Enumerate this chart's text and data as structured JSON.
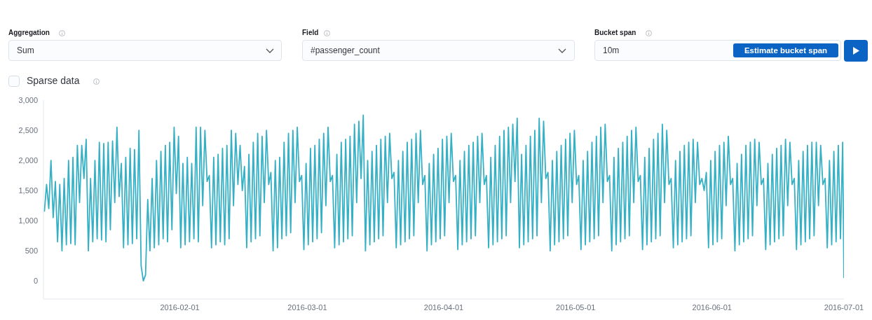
{
  "chart_data": {
    "type": "line",
    "annotations": [
      "Aggregation",
      "Sum",
      "Field",
      "#passenger_count",
      "Bucket span",
      "10m",
      "Estimate bucket span",
      "Sparse data"
    ],
    "xlim": [
      "2016-01-01",
      "2016-07-01"
    ],
    "xticks": [
      "2016-02-01",
      "2016-03-01",
      "2016-04-01",
      "2016-05-01",
      "2016-06-01",
      "2016-07-01"
    ],
    "ylim": [
      -300,
      3000
    ],
    "yticks": [
      0,
      500,
      {
        "value": 1000,
        "label": "1,000"
      },
      {
        "value": 1500,
        "label": "1,500"
      },
      {
        "value": 2000,
        "label": "2,000"
      },
      {
        "value": 2500,
        "label": "2,500"
      },
      {
        "value": 3000,
        "label": "3,000"
      }
    ],
    "x": [
      "2016-01-01T05:00",
      "2016-01-01T17:00",
      "2016-01-02T05:00",
      "2016-01-02T17:00",
      "2016-01-03T05:00",
      "2016-01-03T17:00",
      "2016-01-04T05:00",
      "2016-01-04T17:00",
      "2016-01-05T05:00",
      "2016-01-05T17:00",
      "2016-01-06T05:00",
      "2016-01-06T17:00",
      "2016-01-07T05:00",
      "2016-01-07T17:00",
      "2016-01-08T05:00",
      "2016-01-08T17:00",
      "2016-01-09T05:00",
      "2016-01-09T17:00",
      "2016-01-10T05:00",
      "2016-01-10T17:00",
      "2016-01-11T05:00",
      "2016-01-11T17:00",
      "2016-01-12T05:00",
      "2016-01-12T17:00",
      "2016-01-13T05:00",
      "2016-01-13T17:00",
      "2016-01-14T05:00",
      "2016-01-14T17:00",
      "2016-01-15T05:00",
      "2016-01-15T17:00",
      "2016-01-16T05:00",
      "2016-01-16T17:00",
      "2016-01-17T05:00",
      "2016-01-17T17:00",
      "2016-01-18T05:00",
      "2016-01-18T17:00",
      "2016-01-19T05:00",
      "2016-01-19T17:00",
      "2016-01-20T05:00",
      "2016-01-20T17:00",
      "2016-01-21T05:00",
      "2016-01-21T17:00",
      "2016-01-22T05:00",
      "2016-01-22T17:00",
      "2016-01-23T05:00",
      "2016-01-23T17:00",
      "2016-01-24T05:00",
      "2016-01-24T17:00",
      "2016-01-25T05:00",
      "2016-01-25T17:00",
      "2016-01-26T05:00",
      "2016-01-26T17:00",
      "2016-01-27T05:00",
      "2016-01-27T17:00",
      "2016-01-28T05:00",
      "2016-01-28T17:00",
      "2016-01-29T05:00",
      "2016-01-29T17:00",
      "2016-01-30T05:00",
      "2016-01-30T17:00",
      "2016-01-31T05:00",
      "2016-01-31T17:00",
      "2016-02-01T05:00",
      "2016-02-01T17:00",
      "2016-02-02T05:00",
      "2016-02-02T17:00",
      "2016-02-03T05:00",
      "2016-02-03T17:00",
      "2016-02-04T05:00",
      "2016-02-04T17:00",
      "2016-02-05T05:00",
      "2016-02-05T17:00",
      "2016-02-06T05:00",
      "2016-02-06T17:00",
      "2016-02-07T05:00",
      "2016-02-07T17:00",
      "2016-02-08T05:00",
      "2016-02-08T17:00",
      "2016-02-09T05:00",
      "2016-02-09T17:00",
      "2016-02-10T05:00",
      "2016-02-10T17:00",
      "2016-02-11T05:00",
      "2016-02-11T17:00",
      "2016-02-12T05:00",
      "2016-02-12T17:00",
      "2016-02-13T05:00",
      "2016-02-13T17:00",
      "2016-02-14T05:00",
      "2016-02-14T17:00",
      "2016-02-15T05:00",
      "2016-02-15T17:00",
      "2016-02-16T05:00",
      "2016-02-16T17:00",
      "2016-02-17T05:00",
      "2016-02-17T17:00",
      "2016-02-18T05:00",
      "2016-02-18T17:00",
      "2016-02-19T05:00",
      "2016-02-19T17:00",
      "2016-02-20T05:00",
      "2016-02-20T17:00",
      "2016-02-21T05:00",
      "2016-02-21T17:00",
      "2016-02-22T05:00",
      "2016-02-22T17:00",
      "2016-02-23T05:00",
      "2016-02-23T17:00",
      "2016-02-24T05:00",
      "2016-02-24T17:00",
      "2016-02-25T05:00",
      "2016-02-25T17:00",
      "2016-02-26T05:00",
      "2016-02-26T17:00",
      "2016-02-27T05:00",
      "2016-02-27T17:00",
      "2016-02-28T05:00",
      "2016-02-28T17:00",
      "2016-02-29T05:00",
      "2016-02-29T17:00",
      "2016-03-01T05:00",
      "2016-03-01T17:00",
      "2016-03-02T05:00",
      "2016-03-02T17:00",
      "2016-03-03T05:00",
      "2016-03-03T17:00",
      "2016-03-04T05:00",
      "2016-03-04T17:00",
      "2016-03-05T05:00",
      "2016-03-05T17:00",
      "2016-03-06T05:00",
      "2016-03-06T17:00",
      "2016-03-07T05:00",
      "2016-03-07T17:00",
      "2016-03-08T05:00",
      "2016-03-08T17:00",
      "2016-03-09T05:00",
      "2016-03-09T17:00",
      "2016-03-10T05:00",
      "2016-03-10T17:00",
      "2016-03-11T05:00",
      "2016-03-11T17:00",
      "2016-03-12T05:00",
      "2016-03-12T17:00",
      "2016-03-13T05:00",
      "2016-03-13T17:00",
      "2016-03-14T05:00",
      "2016-03-14T17:00",
      "2016-03-15T05:00",
      "2016-03-15T17:00",
      "2016-03-16T05:00",
      "2016-03-16T17:00",
      "2016-03-17T05:00",
      "2016-03-17T17:00",
      "2016-03-18T05:00",
      "2016-03-18T17:00",
      "2016-03-19T05:00",
      "2016-03-19T17:00",
      "2016-03-20T05:00",
      "2016-03-20T17:00",
      "2016-03-21T05:00",
      "2016-03-21T17:00",
      "2016-03-22T05:00",
      "2016-03-22T17:00",
      "2016-03-23T05:00",
      "2016-03-23T17:00",
      "2016-03-24T05:00",
      "2016-03-24T17:00",
      "2016-03-25T05:00",
      "2016-03-25T17:00",
      "2016-03-26T05:00",
      "2016-03-26T17:00",
      "2016-03-27T05:00",
      "2016-03-27T17:00",
      "2016-03-28T05:00",
      "2016-03-28T17:00",
      "2016-03-29T05:00",
      "2016-03-29T17:00",
      "2016-03-30T05:00",
      "2016-03-30T17:00",
      "2016-03-31T05:00",
      "2016-03-31T17:00",
      "2016-04-01T05:00",
      "2016-04-01T17:00",
      "2016-04-02T05:00",
      "2016-04-02T17:00",
      "2016-04-03T05:00",
      "2016-04-03T17:00",
      "2016-04-04T05:00",
      "2016-04-04T17:00",
      "2016-04-05T05:00",
      "2016-04-05T17:00",
      "2016-04-06T05:00",
      "2016-04-06T17:00",
      "2016-04-07T05:00",
      "2016-04-07T17:00",
      "2016-04-08T05:00",
      "2016-04-08T17:00",
      "2016-04-09T05:00",
      "2016-04-09T17:00",
      "2016-04-10T05:00",
      "2016-04-10T17:00",
      "2016-04-11T05:00",
      "2016-04-11T17:00",
      "2016-04-12T05:00",
      "2016-04-12T17:00",
      "2016-04-13T05:00",
      "2016-04-13T17:00",
      "2016-04-14T05:00",
      "2016-04-14T17:00",
      "2016-04-15T05:00",
      "2016-04-15T17:00",
      "2016-04-16T05:00",
      "2016-04-16T17:00",
      "2016-04-17T05:00",
      "2016-04-17T17:00",
      "2016-04-18T05:00",
      "2016-04-18T17:00",
      "2016-04-19T05:00",
      "2016-04-19T17:00",
      "2016-04-20T05:00",
      "2016-04-20T17:00",
      "2016-04-21T05:00",
      "2016-04-21T17:00",
      "2016-04-22T05:00",
      "2016-04-22T17:00",
      "2016-04-23T05:00",
      "2016-04-23T17:00",
      "2016-04-24T05:00",
      "2016-04-24T17:00",
      "2016-04-25T05:00",
      "2016-04-25T17:00",
      "2016-04-26T05:00",
      "2016-04-26T17:00",
      "2016-04-27T05:00",
      "2016-04-27T17:00",
      "2016-04-28T05:00",
      "2016-04-28T17:00",
      "2016-04-29T05:00",
      "2016-04-29T17:00",
      "2016-04-30T05:00",
      "2016-04-30T17:00",
      "2016-05-01T05:00",
      "2016-05-01T17:00",
      "2016-05-02T05:00",
      "2016-05-02T17:00",
      "2016-05-03T05:00",
      "2016-05-03T17:00",
      "2016-05-04T05:00",
      "2016-05-04T17:00",
      "2016-05-05T05:00",
      "2016-05-05T17:00",
      "2016-05-06T05:00",
      "2016-05-06T17:00",
      "2016-05-07T05:00",
      "2016-05-07T17:00",
      "2016-05-08T05:00",
      "2016-05-08T17:00",
      "2016-05-09T05:00",
      "2016-05-09T17:00",
      "2016-05-10T05:00",
      "2016-05-10T17:00",
      "2016-05-11T05:00",
      "2016-05-11T17:00",
      "2016-05-12T05:00",
      "2016-05-12T17:00",
      "2016-05-13T05:00",
      "2016-05-13T17:00",
      "2016-05-14T05:00",
      "2016-05-14T17:00",
      "2016-05-15T05:00",
      "2016-05-15T17:00",
      "2016-05-16T05:00",
      "2016-05-16T17:00",
      "2016-05-17T05:00",
      "2016-05-17T17:00",
      "2016-05-18T05:00",
      "2016-05-18T17:00",
      "2016-05-19T05:00",
      "2016-05-19T17:00",
      "2016-05-20T05:00",
      "2016-05-20T17:00",
      "2016-05-21T05:00",
      "2016-05-21T17:00",
      "2016-05-22T05:00",
      "2016-05-22T17:00",
      "2016-05-23T05:00",
      "2016-05-23T17:00",
      "2016-05-24T05:00",
      "2016-05-24T17:00",
      "2016-05-25T05:00",
      "2016-05-25T17:00",
      "2016-05-26T05:00",
      "2016-05-26T17:00",
      "2016-05-27T05:00",
      "2016-05-27T17:00",
      "2016-05-28T05:00",
      "2016-05-28T17:00",
      "2016-05-29T05:00",
      "2016-05-29T17:00",
      "2016-05-30T05:00",
      "2016-05-30T17:00",
      "2016-05-31T05:00",
      "2016-05-31T17:00",
      "2016-06-01T05:00",
      "2016-06-01T17:00",
      "2016-06-02T05:00",
      "2016-06-02T17:00",
      "2016-06-03T05:00",
      "2016-06-03T17:00",
      "2016-06-04T05:00",
      "2016-06-04T17:00",
      "2016-06-05T05:00",
      "2016-06-05T17:00",
      "2016-06-06T05:00",
      "2016-06-06T17:00",
      "2016-06-07T05:00",
      "2016-06-07T17:00",
      "2016-06-08T05:00",
      "2016-06-08T17:00",
      "2016-06-09T05:00",
      "2016-06-09T17:00",
      "2016-06-10T05:00",
      "2016-06-10T17:00",
      "2016-06-11T05:00",
      "2016-06-11T17:00",
      "2016-06-12T05:00",
      "2016-06-12T17:00",
      "2016-06-13T05:00",
      "2016-06-13T17:00",
      "2016-06-14T05:00",
      "2016-06-14T17:00",
      "2016-06-15T05:00",
      "2016-06-15T17:00",
      "2016-06-16T05:00",
      "2016-06-16T17:00",
      "2016-06-17T05:00",
      "2016-06-17T17:00",
      "2016-06-18T05:00",
      "2016-06-18T17:00",
      "2016-06-19T05:00",
      "2016-06-19T17:00",
      "2016-06-20T05:00",
      "2016-06-20T17:00",
      "2016-06-21T05:00",
      "2016-06-21T17:00",
      "2016-06-22T05:00",
      "2016-06-22T17:00",
      "2016-06-23T05:00",
      "2016-06-23T17:00",
      "2016-06-24T05:00",
      "2016-06-24T17:00",
      "2016-06-25T05:00",
      "2016-06-25T17:00",
      "2016-06-26T05:00",
      "2016-06-26T17:00",
      "2016-06-27T05:00",
      "2016-06-27T17:00",
      "2016-06-28T05:00",
      "2016-06-28T17:00",
      "2016-06-29T05:00",
      "2016-06-29T17:00",
      "2016-06-30T05:00",
      "2016-06-30T17:00",
      "2016-06-30T23:50"
    ],
    "series": [
      {
        "color": "#36b0c4",
        "values": [
          1150,
          1600,
          1200,
          2000,
          1050,
          1650,
          650,
          1600,
          500,
          1700,
          600,
          2000,
          620,
          2050,
          600,
          2250,
          1300,
          2250,
          1700,
          2350,
          500,
          1700,
          650,
          2000,
          700,
          2300,
          680,
          2280,
          650,
          2300,
          850,
          2320,
          1300,
          2550,
          1400,
          1950,
          550,
          2050,
          600,
          2200,
          620,
          2180,
          700,
          2500,
          250,
          0,
          100,
          1350,
          500,
          1700,
          550,
          2000,
          600,
          2150,
          700,
          2250,
          650,
          2300,
          850,
          2550,
          1450,
          2400,
          550,
          1950,
          600,
          2050,
          650,
          1950,
          700,
          2550,
          650,
          2550,
          1250,
          2500,
          1650,
          1750,
          550,
          2050,
          600,
          2100,
          650,
          2200,
          600,
          2250,
          700,
          2500,
          1250,
          2450,
          1600,
          2250,
          1500,
          1900,
          550,
          2100,
          650,
          2300,
          700,
          2450,
          750,
          2400,
          1300,
          2500,
          1600,
          1800,
          500,
          2000,
          550,
          2050,
          700,
          2300,
          750,
          2450,
          800,
          2500,
          1300,
          2550,
          1650,
          1750,
          520,
          1950,
          600,
          2200,
          650,
          2250,
          700,
          2350,
          800,
          2450,
          1250,
          2550,
          1650,
          1750,
          550,
          2100,
          600,
          2300,
          650,
          2350,
          700,
          2400,
          750,
          2600,
          1300,
          2650,
          1700,
          2750,
          500,
          2000,
          600,
          2150,
          650,
          2250,
          700,
          2350,
          750,
          2400,
          1300,
          2450,
          1700,
          1800,
          550,
          2000,
          600,
          2150,
          650,
          2300,
          700,
          2350,
          750,
          2450,
          1300,
          2500,
          1600,
          1750,
          500,
          1950,
          600,
          2100,
          650,
          2200,
          700,
          2350,
          750,
          2400,
          1300,
          2450,
          1650,
          1750,
          520,
          2000,
          600,
          2150,
          650,
          2250,
          700,
          2300,
          750,
          2400,
          1300,
          2450,
          1600,
          1750,
          550,
          2050,
          600,
          2250,
          650,
          2400,
          700,
          2500,
          750,
          2550,
          1300,
          2600,
          1650,
          2700,
          550,
          2100,
          600,
          2250,
          650,
          2400,
          700,
          2500,
          750,
          2700,
          1300,
          2650,
          1700,
          1800,
          500,
          2000,
          600,
          2150,
          650,
          2250,
          700,
          2350,
          750,
          2450,
          1300,
          2500,
          1600,
          1750,
          520,
          2000,
          600,
          2150,
          650,
          2300,
          700,
          2400,
          750,
          2550,
          1300,
          2600,
          1650,
          1750,
          500,
          2050,
          600,
          2200,
          650,
          2300,
          700,
          2400,
          750,
          2500,
          1300,
          2550,
          1650,
          1750,
          520,
          2050,
          600,
          2200,
          650,
          2350,
          700,
          2450,
          750,
          2600,
          1300,
          2500,
          1600,
          1700,
          550,
          2000,
          600,
          2150,
          650,
          2250,
          700,
          2300,
          750,
          2350,
          1300,
          2300,
          1600,
          1700,
          1500,
          1800,
          550,
          2000,
          600,
          2150,
          650,
          2250,
          700,
          2300,
          1250,
          2400,
          1600,
          1700,
          500,
          1950,
          600,
          2100,
          650,
          2250,
          700,
          2300,
          750,
          2350,
          1250,
          2300,
          1600,
          1700,
          520,
          1950,
          600,
          2100,
          650,
          2200,
          700,
          2250,
          750,
          2350,
          1250,
          2300,
          1600,
          1700,
          520,
          2000,
          600,
          2150,
          650,
          2250,
          700,
          2300,
          750,
          2300,
          1250,
          2250,
          1600,
          1700,
          550,
          2000,
          600,
          2150,
          650,
          2250,
          700,
          2300,
          50
        ]
      }
    ]
  }
}
